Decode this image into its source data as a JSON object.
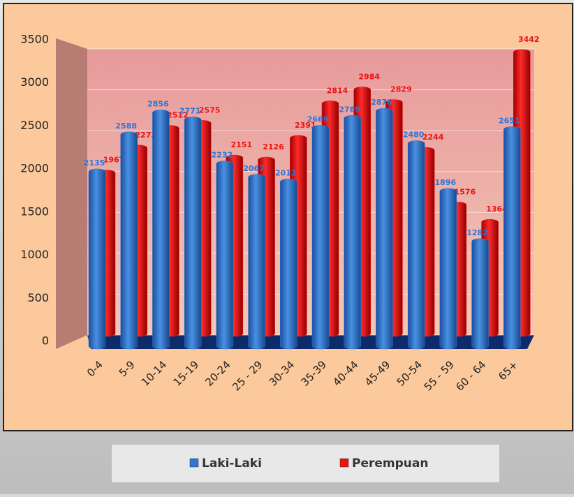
{
  "chart_data": {
    "type": "bar",
    "categories": [
      "0-4",
      "5-9",
      "10-14",
      "15-19",
      "20-24",
      "25 - 29",
      "30-34",
      "35-39",
      "40-44",
      "45-49",
      "50-54",
      "55 - 59",
      "60 - 64",
      "65+"
    ],
    "series": [
      {
        "name": "Laki-Laki",
        "color": "#2e75d6",
        "values": [
          2135,
          2588,
          2856,
          2771,
          2232,
          2067,
          2012,
          2669,
          2789,
          2876,
          2480,
          1896,
          1282,
          2651
        ]
      },
      {
        "name": "Perempuan",
        "color": "#ee1111",
        "values": [
          1967,
          2272,
          2512,
          2575,
          2151,
          2126,
          2391,
          2814,
          2984,
          2829,
          2244,
          1576,
          1364,
          3442
        ]
      }
    ],
    "ylim": [
      0,
      3500
    ],
    "yticks": [
      0,
      500,
      1000,
      1500,
      2000,
      2500,
      3000,
      3500
    ],
    "grid": true,
    "legend": "bottom"
  }
}
